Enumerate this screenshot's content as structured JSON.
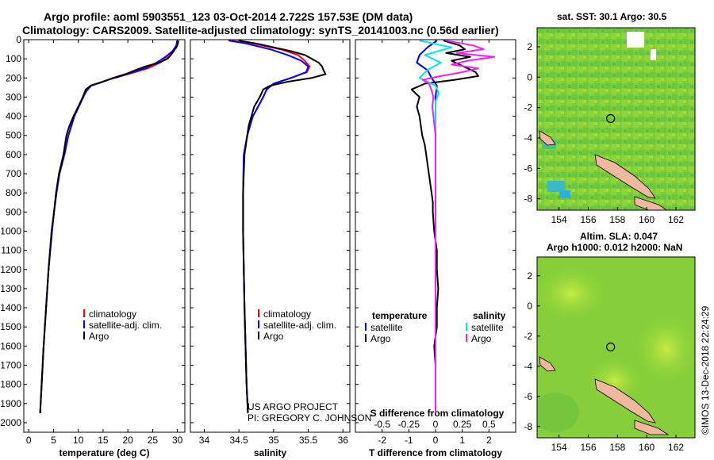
{
  "header": {
    "title_line1": "Argo profile: aoml 5903551_123 03-Oct-2014 2.722S 157.53E (DM data)",
    "title_line2": "Climatology: CARS2009. Satellite-adjusted climatology: synTS_20141003.nc (0.56d earlier)"
  },
  "colors": {
    "climatology": "#ff0000",
    "satellite": "#0000ff",
    "argo": "#000000",
    "sal_satellite": "#00e5ee",
    "sal_argo": "#ee22ee",
    "land": "#f0b8a0"
  },
  "chart_data": [
    {
      "type": "line",
      "id": "temperature",
      "xlabel": "temperature (deg C)",
      "ylabel": "",
      "xlim": [
        -1,
        31.5
      ],
      "ylim": [
        0,
        2050
      ],
      "x_ticks": [
        0,
        5,
        10,
        15,
        20,
        25,
        30
      ],
      "x_tick_labels": [
        "0",
        "5",
        "10",
        "15",
        "20",
        "25",
        "30"
      ],
      "y_ticks": [
        0,
        100,
        200,
        300,
        400,
        500,
        600,
        700,
        800,
        900,
        1000,
        1100,
        1200,
        1300,
        1400,
        1500,
        1600,
        1700,
        1800,
        1900,
        2000
      ],
      "y_tick_labels": [
        "0",
        "100",
        "200",
        "300",
        "400",
        "500",
        "600",
        "700",
        "800",
        "900",
        "1000",
        "1100",
        "1200",
        "1300",
        "1400",
        "1500",
        "1600",
        "1700",
        "1800",
        "1900",
        "2000"
      ],
      "legend": [
        "climatology",
        "satellite-adj. clim.",
        "Argo"
      ],
      "series": [
        {
          "name": "climatology",
          "color_key": "climatology",
          "depth": [
            5,
            30,
            60,
            90,
            120,
            150,
            180,
            210,
            240,
            270,
            300,
            400,
            500,
            600,
            700,
            800,
            1000,
            1200,
            1400,
            1600,
            1800,
            1950
          ],
          "values": [
            29.9,
            29.8,
            29.3,
            28.2,
            26.5,
            24.0,
            20.0,
            16.0,
            12.5,
            11.6,
            11.0,
            9.2,
            8.0,
            7.2,
            6.2,
            5.6,
            4.6,
            4.0,
            3.5,
            3.0,
            2.6,
            2.3
          ]
        },
        {
          "name": "satellite-adj. clim.",
          "color_key": "satellite",
          "depth": [
            5,
            30,
            60,
            90,
            120,
            150,
            180,
            210,
            240,
            270,
            300,
            400,
            500,
            600,
            700,
            800,
            1000,
            1200,
            1400,
            1600,
            1800,
            1950
          ],
          "values": [
            30.0,
            29.8,
            29.0,
            27.6,
            25.8,
            23.4,
            19.8,
            16.0,
            12.6,
            11.6,
            11.0,
            9.2,
            8.0,
            7.2,
            6.2,
            5.6,
            4.6,
            4.0,
            3.5,
            3.0,
            2.6,
            2.3
          ]
        },
        {
          "name": "Argo",
          "color_key": "argo",
          "depth": [
            5,
            20,
            40,
            60,
            80,
            100,
            120,
            140,
            160,
            180,
            200,
            220,
            240,
            260,
            300,
            350,
            400,
            450,
            500,
            600,
            700,
            800,
            900,
            1000,
            1200,
            1400,
            1600,
            1800,
            1950
          ],
          "values": [
            30.2,
            30.1,
            29.8,
            29.2,
            28.7,
            28.0,
            26.3,
            23.5,
            21.5,
            19.5,
            17.0,
            15.0,
            12.5,
            11.5,
            10.9,
            10.0,
            9.0,
            8.2,
            7.6,
            7.0,
            6.1,
            5.5,
            5.1,
            4.7,
            4.0,
            3.5,
            3.0,
            2.6,
            2.3
          ]
        }
      ]
    },
    {
      "type": "line",
      "id": "salinity",
      "xlabel": "salinity",
      "ylabel": "",
      "xlim": [
        33.8,
        36.1
      ],
      "ylim": [
        0,
        2050
      ],
      "x_ticks": [
        34,
        34.5,
        35,
        35.5,
        36
      ],
      "x_tick_labels": [
        "34",
        "34.5",
        "35",
        "35.5",
        "36"
      ],
      "legend": [
        "climatology",
        "satellite-adj. clim.",
        "Argo"
      ],
      "annotation": [
        "US ARGO PROJECT",
        "PI: GREGORY C. JOHNSON"
      ],
      "series": [
        {
          "name": "climatology",
          "color_key": "climatology",
          "depth": [
            5,
            20,
            50,
            80,
            110,
            140,
            170,
            200,
            230,
            260,
            300,
            400,
            500,
            600,
            800,
            1000,
            1400,
            1800,
            1950
          ],
          "values": [
            34.4,
            34.7,
            35.1,
            35.35,
            35.45,
            35.52,
            35.48,
            35.25,
            35.0,
            34.9,
            34.85,
            34.7,
            34.62,
            34.57,
            34.56,
            34.56,
            34.58,
            34.61,
            34.63
          ]
        },
        {
          "name": "satellite-adj. clim.",
          "color_key": "satellite",
          "depth": [
            5,
            20,
            50,
            80,
            110,
            140,
            170,
            200,
            230,
            260,
            300,
            400,
            500,
            600,
            800,
            1000,
            1400,
            1800,
            1950
          ],
          "values": [
            34.35,
            34.6,
            34.95,
            35.2,
            35.4,
            35.5,
            35.47,
            35.25,
            35.0,
            34.9,
            34.85,
            34.7,
            34.62,
            34.57,
            34.56,
            34.56,
            34.58,
            34.61,
            34.63
          ]
        },
        {
          "name": "Argo",
          "color_key": "argo",
          "depth": [
            5,
            20,
            40,
            60,
            80,
            100,
            120,
            140,
            160,
            180,
            200,
            220,
            240,
            260,
            300,
            350,
            400,
            450,
            500,
            600,
            800,
            1000,
            1400,
            1800,
            1950
          ],
          "values": [
            34.5,
            34.75,
            35.0,
            35.25,
            35.45,
            35.55,
            35.65,
            35.7,
            35.72,
            35.75,
            35.55,
            35.2,
            34.95,
            34.85,
            34.8,
            34.72,
            34.68,
            34.64,
            34.62,
            34.58,
            34.56,
            34.56,
            34.58,
            34.61,
            34.63
          ]
        }
      ]
    },
    {
      "type": "line",
      "id": "differences",
      "xlabel": "T difference from climatology",
      "xlabel_top": "S difference from climatology",
      "ylabel": "",
      "xlim": [
        -3,
        3
      ],
      "ylim": [
        0,
        2050
      ],
      "x_ticks": [
        -2,
        -1,
        0,
        1,
        2
      ],
      "x_tick_labels": [
        "-2",
        "-1",
        "0",
        "1",
        "2"
      ],
      "s_ticks": [
        -0.5,
        -0.25,
        0,
        0.25,
        0.5
      ],
      "s_tick_labels": [
        "-0.5",
        "-0.25",
        "0",
        "0.25",
        "0.5"
      ],
      "legend_left_title": "temperature",
      "legend_right_title": "salinity",
      "legend_left": [
        "satellite",
        "Argo"
      ],
      "legend_right": [
        "satellite",
        "Argo"
      ],
      "series": [
        {
          "name": "T satellite",
          "color_key": "satellite",
          "depth": [
            5,
            40,
            80,
            120,
            160,
            200,
            240,
            300,
            400,
            600,
            800,
            1000,
            1400,
            1800,
            1950
          ],
          "values": [
            0.05,
            -0.3,
            -0.6,
            -0.7,
            -0.3,
            -0.15,
            0.05,
            0,
            0,
            0,
            0,
            0,
            0,
            0,
            0
          ]
        },
        {
          "name": "T Argo",
          "color_key": "argo",
          "depth": [
            5,
            30,
            50,
            70,
            90,
            110,
            130,
            150,
            170,
            190,
            210,
            230,
            260,
            300,
            350,
            400,
            450,
            500,
            550,
            600,
            650,
            700,
            750,
            800,
            850,
            900,
            1000,
            1100,
            1200,
            1300,
            1400,
            1500,
            1600,
            1700,
            1800,
            1950
          ],
          "values": [
            0.3,
            0.9,
            1.1,
            0.4,
            1.3,
            0.6,
            0.9,
            1.2,
            1.5,
            1.6,
            0.7,
            -0.4,
            -0.9,
            -0.6,
            -0.7,
            -0.6,
            -0.55,
            -0.5,
            -0.4,
            -0.35,
            -0.3,
            -0.25,
            -0.2,
            -0.15,
            -0.1,
            -0.1,
            -0.05,
            0.05,
            0.05,
            0.1,
            0.05,
            0.05,
            -0.05,
            0,
            0,
            0
          ]
        },
        {
          "name": "S satellite",
          "color_key": "sal_satellite",
          "depth": [
            5,
            40,
            80,
            120,
            160,
            200,
            240,
            280,
            320,
            400,
            600,
            1000,
            1400,
            1800,
            1950
          ],
          "values": [
            -0.15,
            0.15,
            -0.1,
            0.05,
            -0.08,
            -0.15,
            0,
            0.03,
            0,
            0,
            0,
            0,
            0,
            0,
            0
          ]
        },
        {
          "name": "S Argo",
          "color_key": "sal_argo",
          "depth": [
            5,
            30,
            50,
            70,
            90,
            110,
            130,
            150,
            170,
            190,
            210,
            230,
            260,
            300,
            350,
            400,
            500,
            600,
            800,
            1000,
            1400,
            1800,
            1950
          ],
          "values": [
            0.1,
            0.35,
            0.45,
            0.2,
            0.55,
            0.3,
            0.15,
            0.4,
            0.25,
            0.05,
            -0.12,
            -0.06,
            -0.04,
            -0.02,
            -0.03,
            -0.02,
            0,
            0,
            0,
            0,
            0,
            0,
            0
          ]
        }
      ]
    }
  ],
  "maps": {
    "lon_ticks": [
      "154",
      "156",
      "158",
      "160",
      "162"
    ],
    "lat_ticks": [
      "2",
      "0",
      "-2",
      "-4",
      "-6",
      "-8"
    ],
    "sst_title": "sat. SST: 30.1 Argo: 30.5",
    "sla_title1": "Altim. SLA: 0.047",
    "sla_title2": "Argo h1000: 0.012 h2000: NaN",
    "stamp": "©IMOS 13-Dec-2018 22:24:29",
    "argo_position": {
      "lon": 157.53,
      "lat": -2.722
    }
  }
}
